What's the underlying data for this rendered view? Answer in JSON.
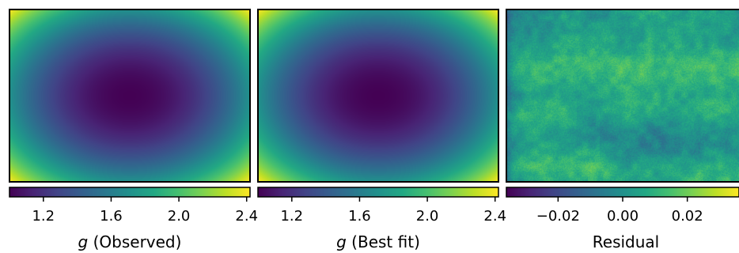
{
  "chart_data": [
    {
      "type": "heatmap",
      "colormap": "viridis",
      "field": "radial bowl: minimum at center, maximum at corners",
      "colorbar": {
        "label_prefix": "g",
        "label_suffix": " (Observed)",
        "range": [
          1.0,
          2.42
        ],
        "ticks": [
          1.2,
          1.6,
          2.0,
          2.4
        ],
        "tick_labels": [
          "1.2",
          "1.6",
          "2.0",
          "2.4"
        ]
      }
    },
    {
      "type": "heatmap",
      "colormap": "viridis",
      "field": "radial bowl: minimum at center, maximum at corners",
      "colorbar": {
        "label_prefix": "g",
        "label_suffix": " (Best fit)",
        "range": [
          1.0,
          2.42
        ],
        "ticks": [
          1.2,
          1.6,
          2.0,
          2.4
        ],
        "tick_labels": [
          "1.2",
          "1.6",
          "2.0",
          "2.4"
        ]
      }
    },
    {
      "type": "heatmap",
      "colormap": "viridis",
      "field": "noisy residual, mostly near zero with brighter horizontal bands",
      "colorbar": {
        "label_prefix": "",
        "label_suffix": "Residual",
        "range": [
          -0.036,
          0.036
        ],
        "ticks": [
          -0.02,
          0.0,
          0.02
        ],
        "tick_labels": [
          "−0.02",
          "0.00",
          "0.02"
        ]
      }
    }
  ]
}
